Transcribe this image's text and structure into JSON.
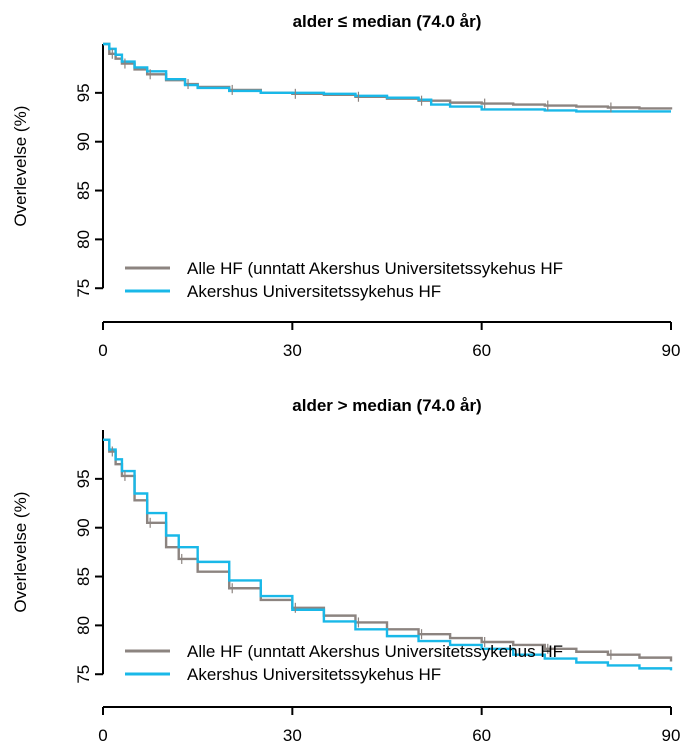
{
  "colors": {
    "alle": "#8c8480",
    "akershus": "#19b8e8",
    "axis": "#000000"
  },
  "chart_data": [
    {
      "type": "line",
      "title": "alder ≤ median (74.0 år)",
      "xlabel": "",
      "ylabel": "Overlevelse (%)",
      "xlim": [
        0,
        90
      ],
      "ylim": [
        74,
        100
      ],
      "x_ticks": [
        0,
        30,
        60,
        90
      ],
      "y_ticks": [
        75,
        80,
        85,
        90,
        95
      ],
      "legend": {
        "position": "bottom-right"
      },
      "series": [
        {
          "name": "Alle HF (unntatt Akershus Universitetssykehus HF",
          "color_key": "alle",
          "x": [
            0,
            1,
            2,
            3,
            5,
            7,
            10,
            13,
            15,
            20,
            25,
            30,
            35,
            40,
            45,
            50,
            55,
            60,
            65,
            70,
            75,
            80,
            85,
            90
          ],
          "y": [
            100,
            99.0,
            98.5,
            98.0,
            97.4,
            96.9,
            96.3,
            95.9,
            95.6,
            95.3,
            95.0,
            94.9,
            94.8,
            94.6,
            94.4,
            94.2,
            94.0,
            93.9,
            93.8,
            93.7,
            93.6,
            93.5,
            93.4,
            93.3
          ]
        },
        {
          "name": "Akershus Universitetssykehus HF",
          "color_key": "akershus",
          "x": [
            0,
            1,
            2,
            3,
            5,
            7,
            10,
            13,
            15,
            20,
            25,
            30,
            35,
            40,
            45,
            50,
            52,
            55,
            60,
            65,
            70,
            75,
            80,
            85,
            90
          ],
          "y": [
            100,
            99.5,
            98.9,
            98.2,
            97.6,
            97.2,
            96.4,
            95.8,
            95.5,
            95.2,
            95.0,
            95.0,
            94.9,
            94.7,
            94.5,
            94.3,
            93.8,
            93.6,
            93.3,
            93.3,
            93.2,
            93.1,
            93.1,
            93.1,
            93.1
          ]
        }
      ]
    },
    {
      "type": "line",
      "title": "alder > median (74.0 år)",
      "xlabel": "",
      "ylabel": "Overlevelse (%)",
      "xlim": [
        0,
        90
      ],
      "ylim": [
        74,
        100
      ],
      "x_ticks": [
        0,
        30,
        60,
        90
      ],
      "y_ticks": [
        75,
        80,
        85,
        90,
        95
      ],
      "legend": {
        "position": "bottom-right"
      },
      "series": [
        {
          "name": "Alle HF (unntatt Akershus Universitetssykehus HF",
          "color_key": "alle",
          "x": [
            0,
            1,
            2,
            3,
            5,
            7,
            10,
            12,
            15,
            20,
            25,
            30,
            35,
            40,
            45,
            50,
            55,
            60,
            65,
            70,
            75,
            80,
            85,
            90
          ],
          "y": [
            99,
            97.8,
            96.5,
            95.3,
            92.8,
            90.5,
            88.0,
            86.8,
            85.5,
            83.8,
            82.6,
            81.8,
            81.0,
            80.3,
            79.6,
            79.1,
            78.7,
            78.3,
            78.0,
            77.6,
            77.3,
            77.0,
            76.7,
            76.3
          ]
        },
        {
          "name": "Akershus Universitetssykehus HF",
          "color_key": "akershus",
          "x": [
            0,
            1,
            2,
            3,
            5,
            7,
            10,
            12,
            15,
            20,
            25,
            30,
            35,
            40,
            45,
            50,
            55,
            60,
            65,
            70,
            75,
            80,
            85,
            90
          ],
          "y": [
            99,
            98.0,
            97.0,
            95.8,
            93.5,
            91.5,
            89.2,
            88.0,
            86.5,
            84.6,
            83.0,
            81.6,
            80.4,
            79.6,
            78.9,
            78.4,
            78.0,
            77.6,
            77.0,
            76.6,
            76.2,
            75.9,
            75.6,
            75.4
          ]
        }
      ]
    }
  ]
}
